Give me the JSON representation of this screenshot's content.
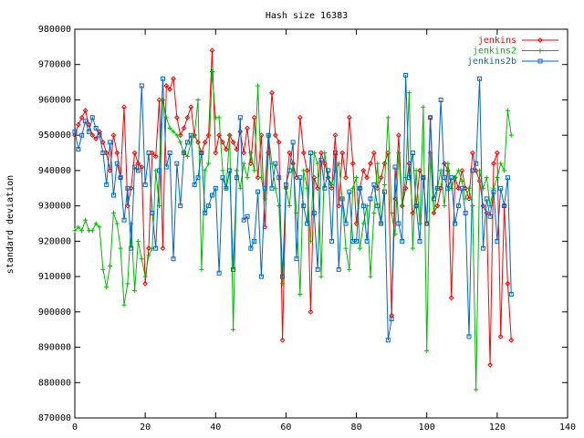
{
  "chart_data": {
    "type": "line",
    "title": "Hash size 16383",
    "xlabel": "",
    "ylabel": "standard deviation",
    "xlim": [
      0,
      140
    ],
    "ylim": [
      870000,
      980000
    ],
    "x_ticks": [
      "0",
      "20",
      "40",
      "60",
      "80",
      "100",
      "120",
      "140"
    ],
    "y_ticks": [
      "870000",
      "880000",
      "890000",
      "900000",
      "910000",
      "920000",
      "930000",
      "940000",
      "950000",
      "960000",
      "970000",
      "980000"
    ],
    "grid": false,
    "legend_position": "top-right",
    "series": [
      {
        "name": "jenkins",
        "color": "#ff0000",
        "marker": "diamond",
        "values": [
          950000,
          953000,
          955000,
          957000,
          953000,
          950000,
          949000,
          951000,
          948000,
          945000,
          940000,
          950000,
          945000,
          938000,
          958000,
          930000,
          935000,
          945000,
          942000,
          941000,
          908000,
          918000,
          945000,
          944000,
          960000,
          918000,
          964000,
          963000,
          966000,
          955000,
          950000,
          952000,
          955000,
          958000,
          950000,
          948000,
          945000,
          948000,
          950000,
          974000,
          945000,
          950000,
          948000,
          946000,
          950000,
          948000,
          946000,
          951000,
          945000,
          952000,
          942000,
          955000,
          938000,
          950000,
          924000,
          945000,
          962000,
          950000,
          948000,
          892000,
          935000,
          945000,
          942000,
          938000,
          955000,
          945000,
          940000,
          900000,
          938000,
          935000,
          945000,
          942000,
          938000,
          935000,
          950000,
          930000,
          945000,
          938000,
          955000,
          942000,
          925000,
          935000,
          940000,
          938000,
          942000,
          945000,
          935000,
          938000,
          942000,
          945000,
          899000,
          932000,
          950000,
          930000,
          935000,
          942000,
          928000,
          930000,
          940000,
          938000,
          925000,
          955000,
          928000,
          930000,
          935000,
          942000,
          940000,
          904000,
          938000,
          935000,
          940000,
          935000,
          932000,
          945000,
          940000,
          937000,
          930000,
          928000,
          885000,
          942000,
          945000,
          893000,
          930000,
          908000,
          892000
        ]
      },
      {
        "name": "jenkins2",
        "color": "#00bb00",
        "marker": "plus",
        "values": [
          923000,
          924000,
          923000,
          926000,
          923000,
          923000,
          925000,
          924000,
          912000,
          907000,
          913000,
          928000,
          925000,
          918000,
          902000,
          908000,
          925000,
          906000,
          920000,
          915000,
          910000,
          916000,
          918000,
          940000,
          930000,
          960000,
          955000,
          952000,
          951000,
          950000,
          948000,
          945000,
          944000,
          948000,
          950000,
          960000,
          912000,
          940000,
          942000,
          968000,
          955000,
          955000,
          940000,
          935000,
          950000,
          895000,
          940000,
          935000,
          942000,
          938000,
          945000,
          940000,
          964000,
          938000,
          932000,
          950000,
          942000,
          935000,
          930000,
          908000,
          935000,
          930000,
          942000,
          928000,
          905000,
          940000,
          935000,
          920000,
          945000,
          942000,
          910000,
          945000,
          938000,
          936000,
          940000,
          942000,
          932000,
          918000,
          912000,
          935000,
          938000,
          918000,
          925000,
          930000,
          910000,
          928000,
          942000,
          925000,
          936000,
          955000,
          928000,
          922000,
          945000,
          930000,
          938000,
          962000,
          918000,
          940000,
          925000,
          958000,
          889000,
          945000,
          928000,
          935000,
          940000,
          930000,
          942000,
          935000,
          938000,
          940000,
          937000,
          932000,
          935000,
          930000,
          878000,
          940000,
          935000,
          938000,
          930000,
          935000,
          938000,
          942000,
          940000,
          957000,
          950000
        ]
      },
      {
        "name": "jenkins2b",
        "color": "#0066cc",
        "marker": "square",
        "values": [
          951000,
          946000,
          950000,
          954000,
          951000,
          955000,
          952000,
          950000,
          945000,
          936000,
          948000,
          933000,
          942000,
          938000,
          926000,
          935000,
          918000,
          941000,
          940000,
          964000,
          936000,
          945000,
          928000,
          918000,
          940000,
          966000,
          941000,
          945000,
          915000,
          942000,
          930000,
          945000,
          948000,
          950000,
          936000,
          938000,
          945000,
          928000,
          930000,
          933000,
          935000,
          911000,
          938000,
          935000,
          940000,
          912000,
          938000,
          955000,
          926000,
          927000,
          918000,
          920000,
          934000,
          910000,
          935000,
          950000,
          935000,
          942000,
          938000,
          910000,
          936000,
          940000,
          948000,
          915000,
          938000,
          930000,
          925000,
          945000,
          928000,
          912000,
          943000,
          935000,
          940000,
          920000,
          945000,
          912000,
          932000,
          925000,
          934000,
          920000,
          920000,
          935000,
          930000,
          920000,
          932000,
          936000,
          930000,
          925000,
          934000,
          892000,
          898000,
          941000,
          925000,
          920000,
          967000,
          938000,
          945000,
          930000,
          920000,
          938000,
          925000,
          955000,
          932000,
          935000,
          960000,
          938000,
          935000,
          938000,
          925000,
          930000,
          935000,
          928000,
          893000,
          940000,
          942000,
          966000,
          918000,
          932000,
          927000,
          934000,
          920000,
          935000,
          930000,
          938000,
          905000
        ]
      }
    ]
  }
}
